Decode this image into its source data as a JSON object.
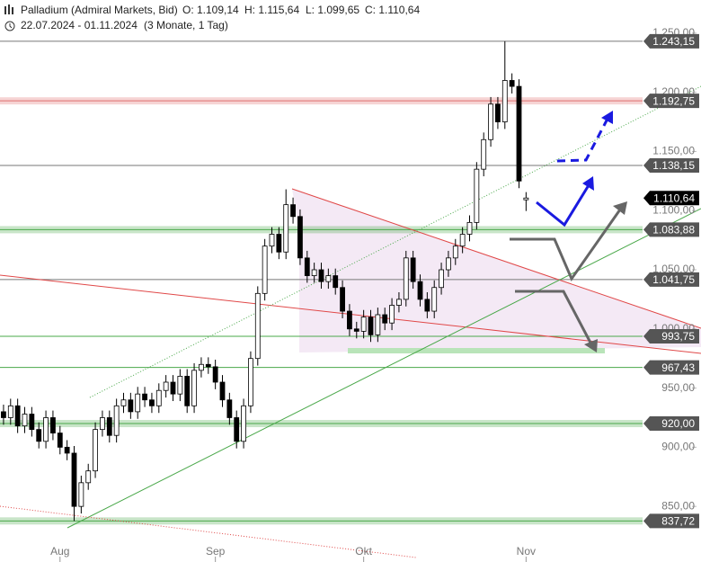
{
  "header": {
    "title": "Palladium (Admiral Markets, Bid)",
    "open": "O: 1.109,14",
    "high": "H: 1.115,64",
    "low": "L: 1.099,65",
    "close": "C: 1.110,64",
    "range": "22.07.2024 - 01.11.2024",
    "period": "(3 Monate, 1 Tag)"
  },
  "chart_data": {
    "type": "candlestick",
    "categories": [
      null,
      null,
      null,
      null,
      null,
      null,
      null,
      null,
      null,
      null,
      null,
      null,
      null,
      null,
      null,
      null,
      null,
      null,
      null,
      null,
      null,
      null,
      null,
      null,
      null,
      null,
      null,
      null,
      null,
      null,
      null,
      null,
      null,
      null,
      null,
      null,
      null,
      null,
      null,
      null,
      null,
      null,
      null,
      null,
      null,
      null,
      null,
      null,
      null,
      null,
      null,
      null,
      null,
      null,
      null,
      null,
      null,
      null,
      null,
      null,
      null,
      null,
      null,
      null,
      null,
      null,
      null,
      null,
      null,
      null,
      null,
      null,
      null,
      null,
      null
    ],
    "open": [
      930,
      925,
      935,
      918,
      928,
      915,
      905,
      925,
      912,
      900,
      895,
      850,
      870,
      880,
      915,
      925,
      910,
      935,
      940,
      930,
      945,
      940,
      935,
      948,
      955,
      945,
      960,
      935,
      965,
      970,
      968,
      955,
      940,
      925,
      905,
      935,
      975,
      1030,
      1070,
      1080,
      1065,
      1105,
      1095,
      1060,
      1045,
      1050,
      1040,
      1045,
      1035,
      1015,
      1000,
      998,
      1010,
      995,
      1012,
      1005,
      1020,
      1025,
      1060,
      1040,
      1025,
      1015,
      1035,
      1050,
      1060,
      1070,
      1080,
      1090,
      1135,
      1160,
      1190,
      1175,
      1210,
      1205,
      1109.14
    ],
    "high": [
      936,
      941,
      941,
      934,
      934,
      921,
      931,
      931,
      918,
      906,
      901,
      876,
      886,
      921,
      931,
      931,
      941,
      946,
      946,
      951,
      951,
      946,
      954,
      961,
      961,
      966,
      966,
      971,
      976,
      976,
      974,
      961,
      946,
      931,
      941,
      981,
      1036,
      1076,
      1086,
      1086,
      1118,
      1111,
      1101,
      1066,
      1056,
      1056,
      1051,
      1051,
      1041,
      1021,
      1006,
      1016,
      1016,
      1018,
      1018,
      1026,
      1031,
      1066,
      1066,
      1046,
      1031,
      1041,
      1056,
      1066,
      1076,
      1086,
      1096,
      1141,
      1166,
      1196,
      1196,
      1243.15,
      1216,
      1211,
      1115.64
    ],
    "low": [
      919,
      919,
      912,
      912,
      909,
      899,
      899,
      906,
      894,
      889,
      837.72,
      844,
      864,
      874,
      909,
      904,
      904,
      929,
      924,
      924,
      934,
      929,
      929,
      942,
      939,
      939,
      929,
      929,
      959,
      962,
      949,
      934,
      919,
      899,
      899,
      929,
      969,
      1024,
      1064,
      1059,
      1059,
      1089,
      1054,
      1039,
      1039,
      1034,
      1034,
      1029,
      1009,
      994,
      992,
      992,
      989,
      989,
      999,
      999,
      1014,
      1019,
      1034,
      1019,
      1009,
      1009,
      1029,
      1044,
      1054,
      1064,
      1074,
      1084,
      1129,
      1154,
      1169,
      1169,
      1199,
      1119,
      1099.65
    ],
    "close": [
      925,
      935,
      918,
      928,
      915,
      905,
      925,
      912,
      900,
      895,
      850,
      870,
      880,
      915,
      925,
      910,
      935,
      940,
      930,
      945,
      940,
      935,
      948,
      955,
      945,
      960,
      935,
      965,
      970,
      968,
      955,
      940,
      925,
      905,
      935,
      975,
      1030,
      1070,
      1080,
      1065,
      1105,
      1095,
      1060,
      1045,
      1050,
      1040,
      1045,
      1035,
      1015,
      1000,
      998,
      1010,
      995,
      1012,
      1005,
      1020,
      1025,
      1060,
      1040,
      1025,
      1015,
      1035,
      1050,
      1060,
      1070,
      1080,
      1090,
      1135,
      1160,
      1190,
      1175,
      1210,
      1205,
      1125,
      1110.64
    ],
    "up_color": "#ffffff",
    "down_color": "#000000",
    "xlim": [
      -0.5,
      90.5
    ],
    "xticks": [
      {
        "value": 8,
        "label": "Aug"
      },
      {
        "value": 30,
        "label": "Sep"
      },
      {
        "value": 51,
        "label": "Okt"
      },
      {
        "value": 74,
        "label": "Nov"
      }
    ],
    "ylim": [
      822,
      1278
    ],
    "yticks": [
      {
        "value": 850,
        "label": "850,00"
      },
      {
        "value": 900,
        "label": "900,00"
      },
      {
        "value": 950,
        "label": "950,00"
      },
      {
        "value": 1000,
        "label": "1.000,00"
      },
      {
        "value": 1050,
        "label": "1.050,00"
      },
      {
        "value": 1100,
        "label": "1.100,00"
      },
      {
        "value": 1150,
        "label": "1.150,00"
      },
      {
        "value": 1200,
        "label": "1.200,00"
      },
      {
        "value": 1250,
        "label": "1.250,00"
      }
    ],
    "levels": [
      {
        "value": 1243.15,
        "label": "1.243,15",
        "color": "#777777",
        "band": false,
        "tag_color": "#555555"
      },
      {
        "value": 1192.75,
        "label": "1.192,75",
        "color": "#e07070",
        "band": true,
        "tag_color": "#555555"
      },
      {
        "value": 1138.15,
        "label": "1.138,15",
        "color": "#777777",
        "band": false,
        "tag_color": "#555555"
      },
      {
        "value": 1110.64,
        "label": "1.110,64",
        "color": null,
        "band": false,
        "tag_color": "#000000"
      },
      {
        "value": 1083.88,
        "label": "1.083,88",
        "color": "#4aa84a",
        "band": true,
        "tag_color": "#555555"
      },
      {
        "value": 1041.75,
        "label": "1.041,75",
        "color": "#777777",
        "band": false,
        "tag_color": "#555555"
      },
      {
        "value": 993.75,
        "label": "993,75",
        "color": "#4aa84a",
        "band": false,
        "tag_color": "#555555"
      },
      {
        "value": 967.43,
        "label": "967,43",
        "color": "#4aa84a",
        "band": false,
        "tag_color": "#555555"
      },
      {
        "value": 920,
        "label": "920,00",
        "color": "#4aa84a",
        "band": true,
        "tag_color": "#555555"
      },
      {
        "value": 837.72,
        "label": "837,72",
        "color": "#4aa84a",
        "band": true,
        "tag_color": "#555555"
      }
    ]
  }
}
